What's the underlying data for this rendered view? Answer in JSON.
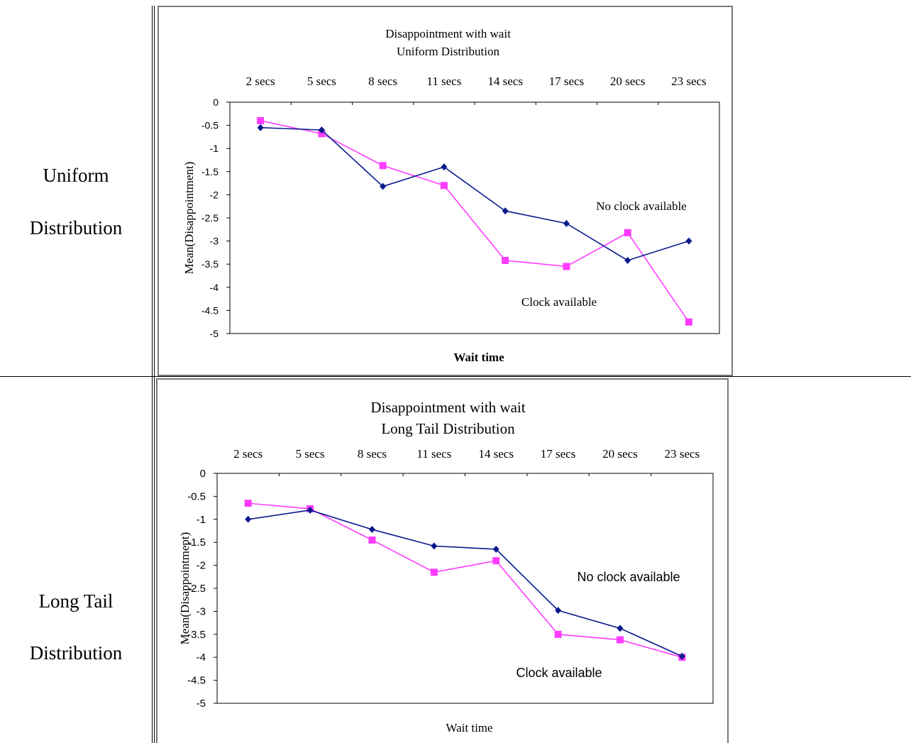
{
  "rows": [
    {
      "label_line1": "Uniform",
      "label_line2": "Distribution"
    },
    {
      "label_line1": "Long Tail",
      "label_line2": "Distribution"
    }
  ],
  "colors": {
    "no_clock": "#0a1a8c",
    "clock": "#ff3cff"
  },
  "chart_data": [
    {
      "type": "line",
      "title": "Disappointment with wait",
      "subtitle": "Uniform Distribution",
      "xlabel": "Wait time",
      "ylabel": "Mean(Disappointment)",
      "categories": [
        "2 secs",
        "5 secs",
        "8 secs",
        "11 secs",
        "14 secs",
        "17 secs",
        "20 secs",
        "23 secs"
      ],
      "ylim": [
        -5,
        0
      ],
      "yticks": [
        "0",
        "-0.5",
        "-1",
        "-1.5",
        "-2",
        "-2.5",
        "-3",
        "-3.5",
        "-4",
        "-4.5",
        "-5"
      ],
      "series": [
        {
          "name": "No clock available",
          "marker": "diamond",
          "values": [
            -0.55,
            -0.6,
            -1.82,
            -1.4,
            -2.35,
            -2.62,
            -3.42,
            -3.0
          ]
        },
        {
          "name": "Clock available",
          "marker": "square",
          "values": [
            -0.4,
            -0.68,
            -1.37,
            -1.8,
            -3.42,
            -3.55,
            -2.82,
            -4.75
          ]
        }
      ]
    },
    {
      "type": "line",
      "title": "Disappointment with wait",
      "subtitle": "Long Tail Distribution",
      "xlabel": "Wait time",
      "ylabel": "Mean(Disappointmept)",
      "categories": [
        "2 secs",
        "5 secs",
        "8 secs",
        "11 secs",
        "14 secs",
        "17 secs",
        "20 secs",
        "23 secs"
      ],
      "ylim": [
        -5,
        0
      ],
      "yticks": [
        "0",
        "-0.5",
        "-1",
        "-1.5",
        "-2",
        "-2.5",
        "-3",
        "-3.5",
        "-4",
        "-4.5",
        "-5"
      ],
      "series": [
        {
          "name": "No clock available",
          "marker": "diamond",
          "values": [
            -1.0,
            -0.8,
            -1.22,
            -1.58,
            -1.65,
            -2.98,
            -3.37,
            -3.98
          ]
        },
        {
          "name": "Clock available",
          "marker": "square",
          "values": [
            -0.65,
            -0.77,
            -1.45,
            -2.15,
            -1.9,
            -3.5,
            -3.62,
            -4.0
          ]
        }
      ]
    }
  ]
}
